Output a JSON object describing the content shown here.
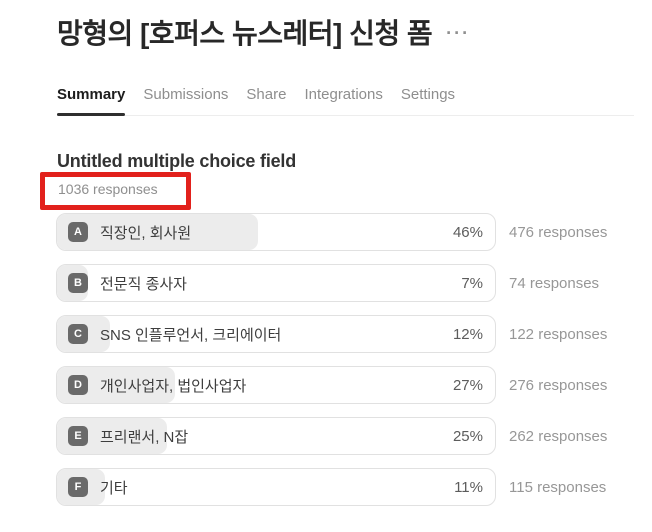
{
  "header": {
    "title": "망형의 [호퍼스 뉴스레터] 신청 폼",
    "menu_icon": "···"
  },
  "tabs": [
    {
      "label": "Summary",
      "active": true
    },
    {
      "label": "Submissions",
      "active": false
    },
    {
      "label": "Share",
      "active": false
    },
    {
      "label": "Integrations",
      "active": false
    },
    {
      "label": "Settings",
      "active": false
    }
  ],
  "field": {
    "title": "Untitled multiple choice field",
    "responses_summary": "1036 responses"
  },
  "options": [
    {
      "letter": "A",
      "label": "직장인, 회사원",
      "percent": "46%",
      "percent_value": 46,
      "responses": "476 responses"
    },
    {
      "letter": "B",
      "label": "전문직 종사자",
      "percent": "7%",
      "percent_value": 7,
      "responses": "74 responses"
    },
    {
      "letter": "C",
      "label": "SNS 인플루언서, 크리에이터",
      "percent": "12%",
      "percent_value": 12,
      "responses": "122 responses"
    },
    {
      "letter": "D",
      "label": "개인사업자, 법인사업자",
      "percent": "27%",
      "percent_value": 27,
      "responses": "276 responses"
    },
    {
      "letter": "E",
      "label": "프리랜서, N잡",
      "percent": "25%",
      "percent_value": 25,
      "responses": "262 responses"
    },
    {
      "letter": "F",
      "label": "기타",
      "percent": "11%",
      "percent_value": 11,
      "responses": "115 responses"
    }
  ],
  "chart_data": {
    "type": "bar",
    "title": "Untitled multiple choice field",
    "categories": [
      "직장인, 회사원",
      "전문직 종사자",
      "SNS 인플루언서, 크리에이터",
      "개인사업자, 법인사업자",
      "프리랜서, N잡",
      "기타"
    ],
    "series": [
      {
        "name": "percent",
        "values": [
          46,
          7,
          12,
          27,
          25,
          11
        ]
      },
      {
        "name": "responses",
        "values": [
          476,
          74,
          122,
          276,
          262,
          115
        ]
      }
    ],
    "total_responses": 1036,
    "xlim": [
      0,
      100
    ]
  },
  "colors": {
    "annotation_red": "#e2211c",
    "badge_gray": "#6a6a6a",
    "bar_fill_gray": "#ececec",
    "active_tab_underline": "#2f2f2f"
  }
}
